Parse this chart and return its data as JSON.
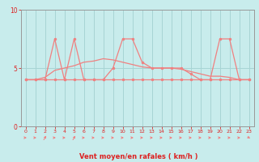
{
  "x": [
    0,
    1,
    2,
    3,
    4,
    5,
    6,
    7,
    8,
    9,
    10,
    11,
    12,
    13,
    14,
    15,
    16,
    17,
    18,
    19,
    20,
    21,
    22,
    23
  ],
  "y_mean": [
    4,
    4,
    4,
    4,
    4,
    4,
    4,
    4,
    4,
    4,
    4,
    4,
    4,
    4,
    4,
    4,
    4,
    4,
    4,
    4,
    4,
    4,
    4,
    4
  ],
  "y_gust": [
    4,
    4,
    4,
    7.5,
    4,
    7.5,
    4,
    4,
    4,
    5,
    7.5,
    7.5,
    5.5,
    5,
    5,
    5,
    5,
    4.5,
    4,
    4,
    7.5,
    7.5,
    4,
    4
  ],
  "y_dir_line": [
    4,
    4,
    4.2,
    4.8,
    5.0,
    5.2,
    5.5,
    5.6,
    5.8,
    5.7,
    5.5,
    5.3,
    5.1,
    5.0,
    5.0,
    5.0,
    4.9,
    4.7,
    4.5,
    4.3,
    4.3,
    4.2,
    4.0,
    4.0
  ],
  "xlabel": "Vent moyen/en rafales ( km/h )",
  "ylim": [
    0,
    10
  ],
  "xlim": [
    -0.5,
    23.5
  ],
  "yticks": [
    0,
    5,
    10
  ],
  "xticks": [
    0,
    1,
    2,
    3,
    4,
    5,
    6,
    7,
    8,
    9,
    10,
    11,
    12,
    13,
    14,
    15,
    16,
    17,
    18,
    19,
    20,
    21,
    22,
    23
  ],
  "line_color": "#f08080",
  "bg_color": "#c8ecec",
  "grid_color": "#a8d4d4",
  "tick_color": "#dd2222",
  "arrow_angles": [
    0,
    0,
    45,
    0,
    0,
    45,
    0,
    0,
    0,
    0,
    0,
    0,
    0,
    0,
    0,
    0,
    0,
    0,
    0,
    0,
    0,
    0,
    0,
    -20
  ]
}
